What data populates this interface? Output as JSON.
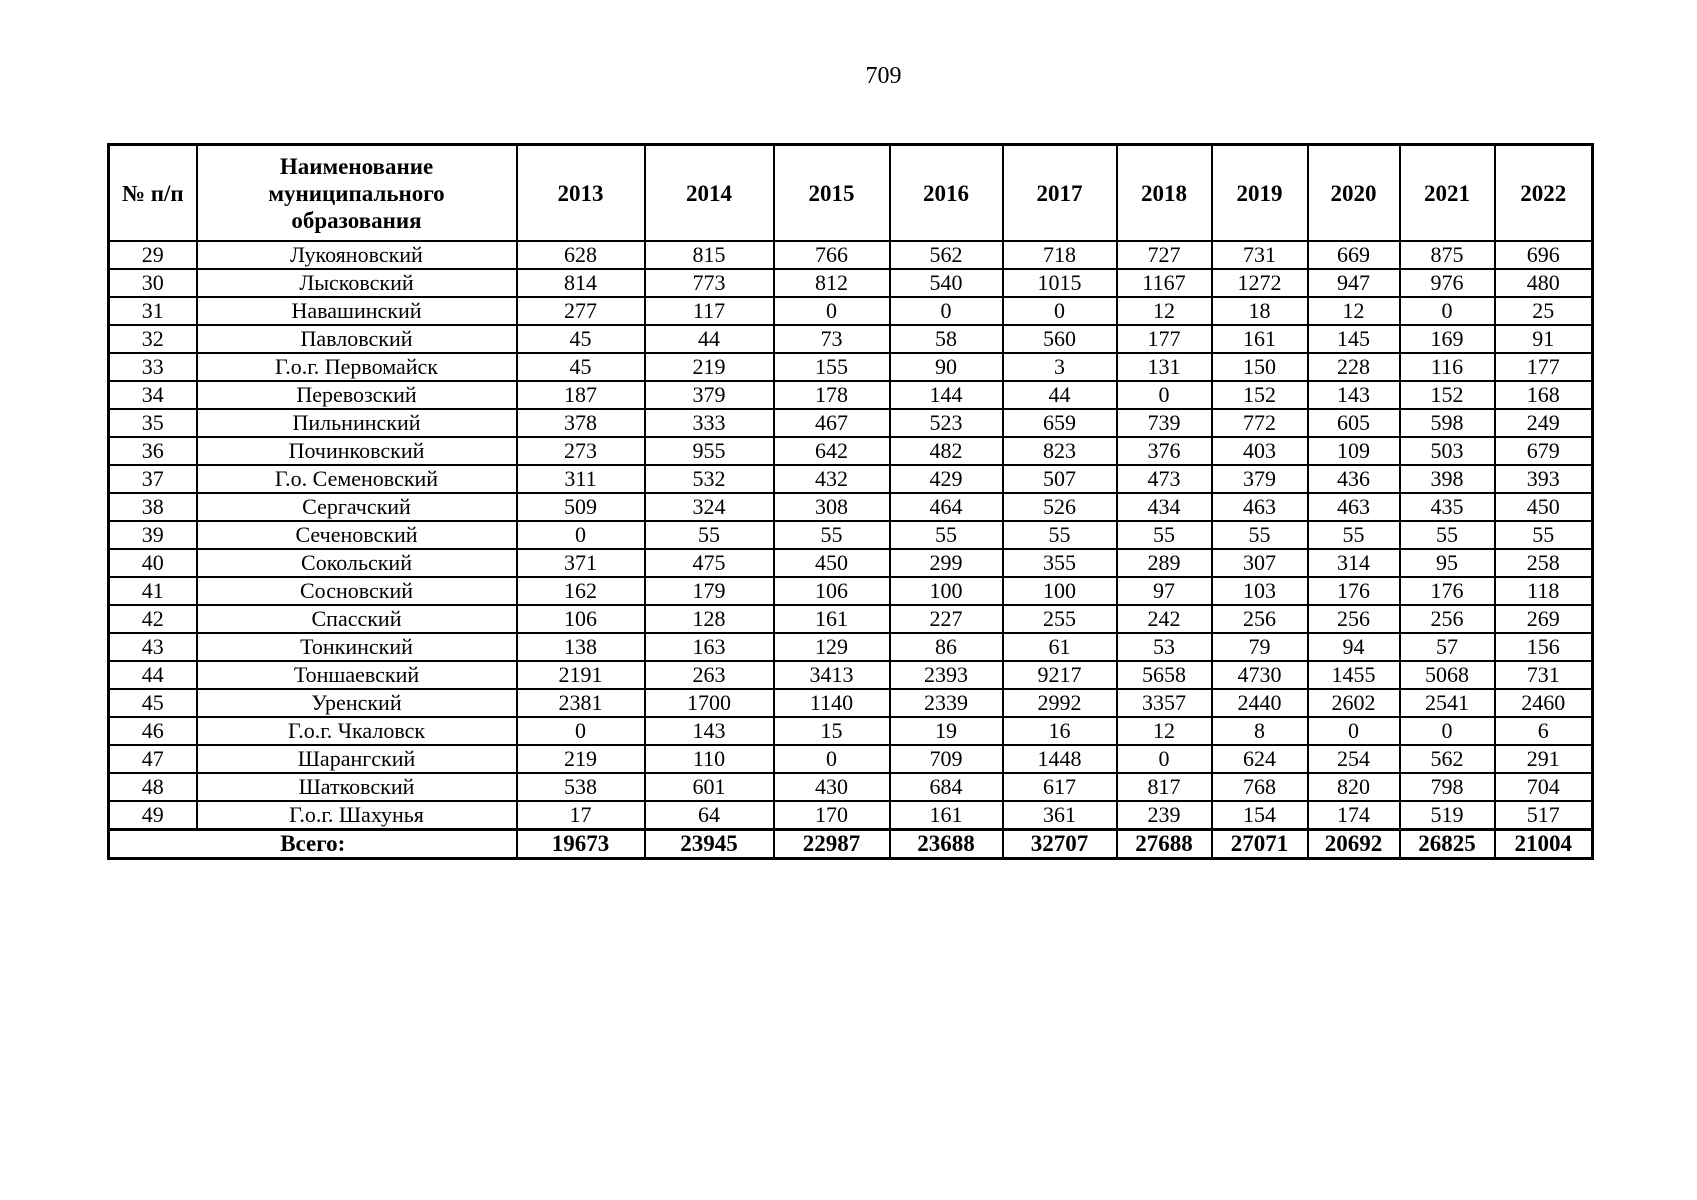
{
  "page": {
    "number": "709"
  },
  "table": {
    "headers": {
      "num": "№ п/п",
      "name": "Наименование муниципального образования",
      "years": [
        "2013",
        "2014",
        "2015",
        "2016",
        "2017",
        "2018",
        "2019",
        "2020",
        "2021",
        "2022"
      ]
    },
    "rows": [
      {
        "num": "29",
        "name": "Лукояновский",
        "values": [
          628,
          815,
          766,
          562,
          718,
          727,
          731,
          669,
          875,
          696
        ]
      },
      {
        "num": "30",
        "name": "Лысковский",
        "values": [
          814,
          773,
          812,
          540,
          1015,
          1167,
          1272,
          947,
          976,
          480
        ]
      },
      {
        "num": "31",
        "name": "Навашинский",
        "values": [
          277,
          117,
          0,
          0,
          0,
          12,
          18,
          12,
          0,
          25
        ]
      },
      {
        "num": "32",
        "name": "Павловский",
        "values": [
          45,
          44,
          73,
          58,
          560,
          177,
          161,
          145,
          169,
          91
        ]
      },
      {
        "num": "33",
        "name": "Г.о.г. Первомайск",
        "values": [
          45,
          219,
          155,
          90,
          3,
          131,
          150,
          228,
          116,
          177
        ]
      },
      {
        "num": "34",
        "name": "Перевозский",
        "values": [
          187,
          379,
          178,
          144,
          44,
          0,
          152,
          143,
          152,
          168
        ]
      },
      {
        "num": "35",
        "name": "Пильнинский",
        "values": [
          378,
          333,
          467,
          523,
          659,
          739,
          772,
          605,
          598,
          249
        ]
      },
      {
        "num": "36",
        "name": "Починковский",
        "values": [
          273,
          955,
          642,
          482,
          823,
          376,
          403,
          109,
          503,
          679
        ]
      },
      {
        "num": "37",
        "name": "Г.о. Семеновский",
        "values": [
          311,
          532,
          432,
          429,
          507,
          473,
          379,
          436,
          398,
          393
        ]
      },
      {
        "num": "38",
        "name": "Сергачский",
        "values": [
          509,
          324,
          308,
          464,
          526,
          434,
          463,
          463,
          435,
          450
        ]
      },
      {
        "num": "39",
        "name": "Сеченовский",
        "values": [
          0,
          55,
          55,
          55,
          55,
          55,
          55,
          55,
          55,
          55
        ]
      },
      {
        "num": "40",
        "name": "Сокольский",
        "values": [
          371,
          475,
          450,
          299,
          355,
          289,
          307,
          314,
          95,
          258
        ]
      },
      {
        "num": "41",
        "name": "Сосновский",
        "values": [
          162,
          179,
          106,
          100,
          100,
          97,
          103,
          176,
          176,
          118
        ]
      },
      {
        "num": "42",
        "name": "Спасский",
        "values": [
          106,
          128,
          161,
          227,
          255,
          242,
          256,
          256,
          256,
          269
        ]
      },
      {
        "num": "43",
        "name": "Тонкинский",
        "values": [
          138,
          163,
          129,
          86,
          61,
          53,
          79,
          94,
          57,
          156
        ]
      },
      {
        "num": "44",
        "name": "Тоншаевский",
        "values": [
          2191,
          263,
          3413,
          2393,
          9217,
          5658,
          4730,
          1455,
          5068,
          731
        ]
      },
      {
        "num": "45",
        "name": "Уренский",
        "values": [
          2381,
          1700,
          1140,
          2339,
          2992,
          3357,
          2440,
          2602,
          2541,
          2460
        ]
      },
      {
        "num": "46",
        "name": "Г.о.г. Чкаловск",
        "values": [
          0,
          143,
          15,
          19,
          16,
          12,
          8,
          0,
          0,
          6
        ]
      },
      {
        "num": "47",
        "name": "Шарангский",
        "values": [
          219,
          110,
          0,
          709,
          1448,
          0,
          624,
          254,
          562,
          291
        ]
      },
      {
        "num": "48",
        "name": "Шатковский",
        "values": [
          538,
          601,
          430,
          684,
          617,
          817,
          768,
          820,
          798,
          704
        ]
      },
      {
        "num": "49",
        "name": "Г.о.г. Шахунья",
        "values": [
          17,
          64,
          170,
          161,
          361,
          239,
          154,
          174,
          519,
          517
        ]
      }
    ],
    "total": {
      "label": "Всего:",
      "values": [
        19673,
        23945,
        22987,
        23688,
        32707,
        27688,
        27071,
        20692,
        26825,
        21004
      ]
    }
  }
}
